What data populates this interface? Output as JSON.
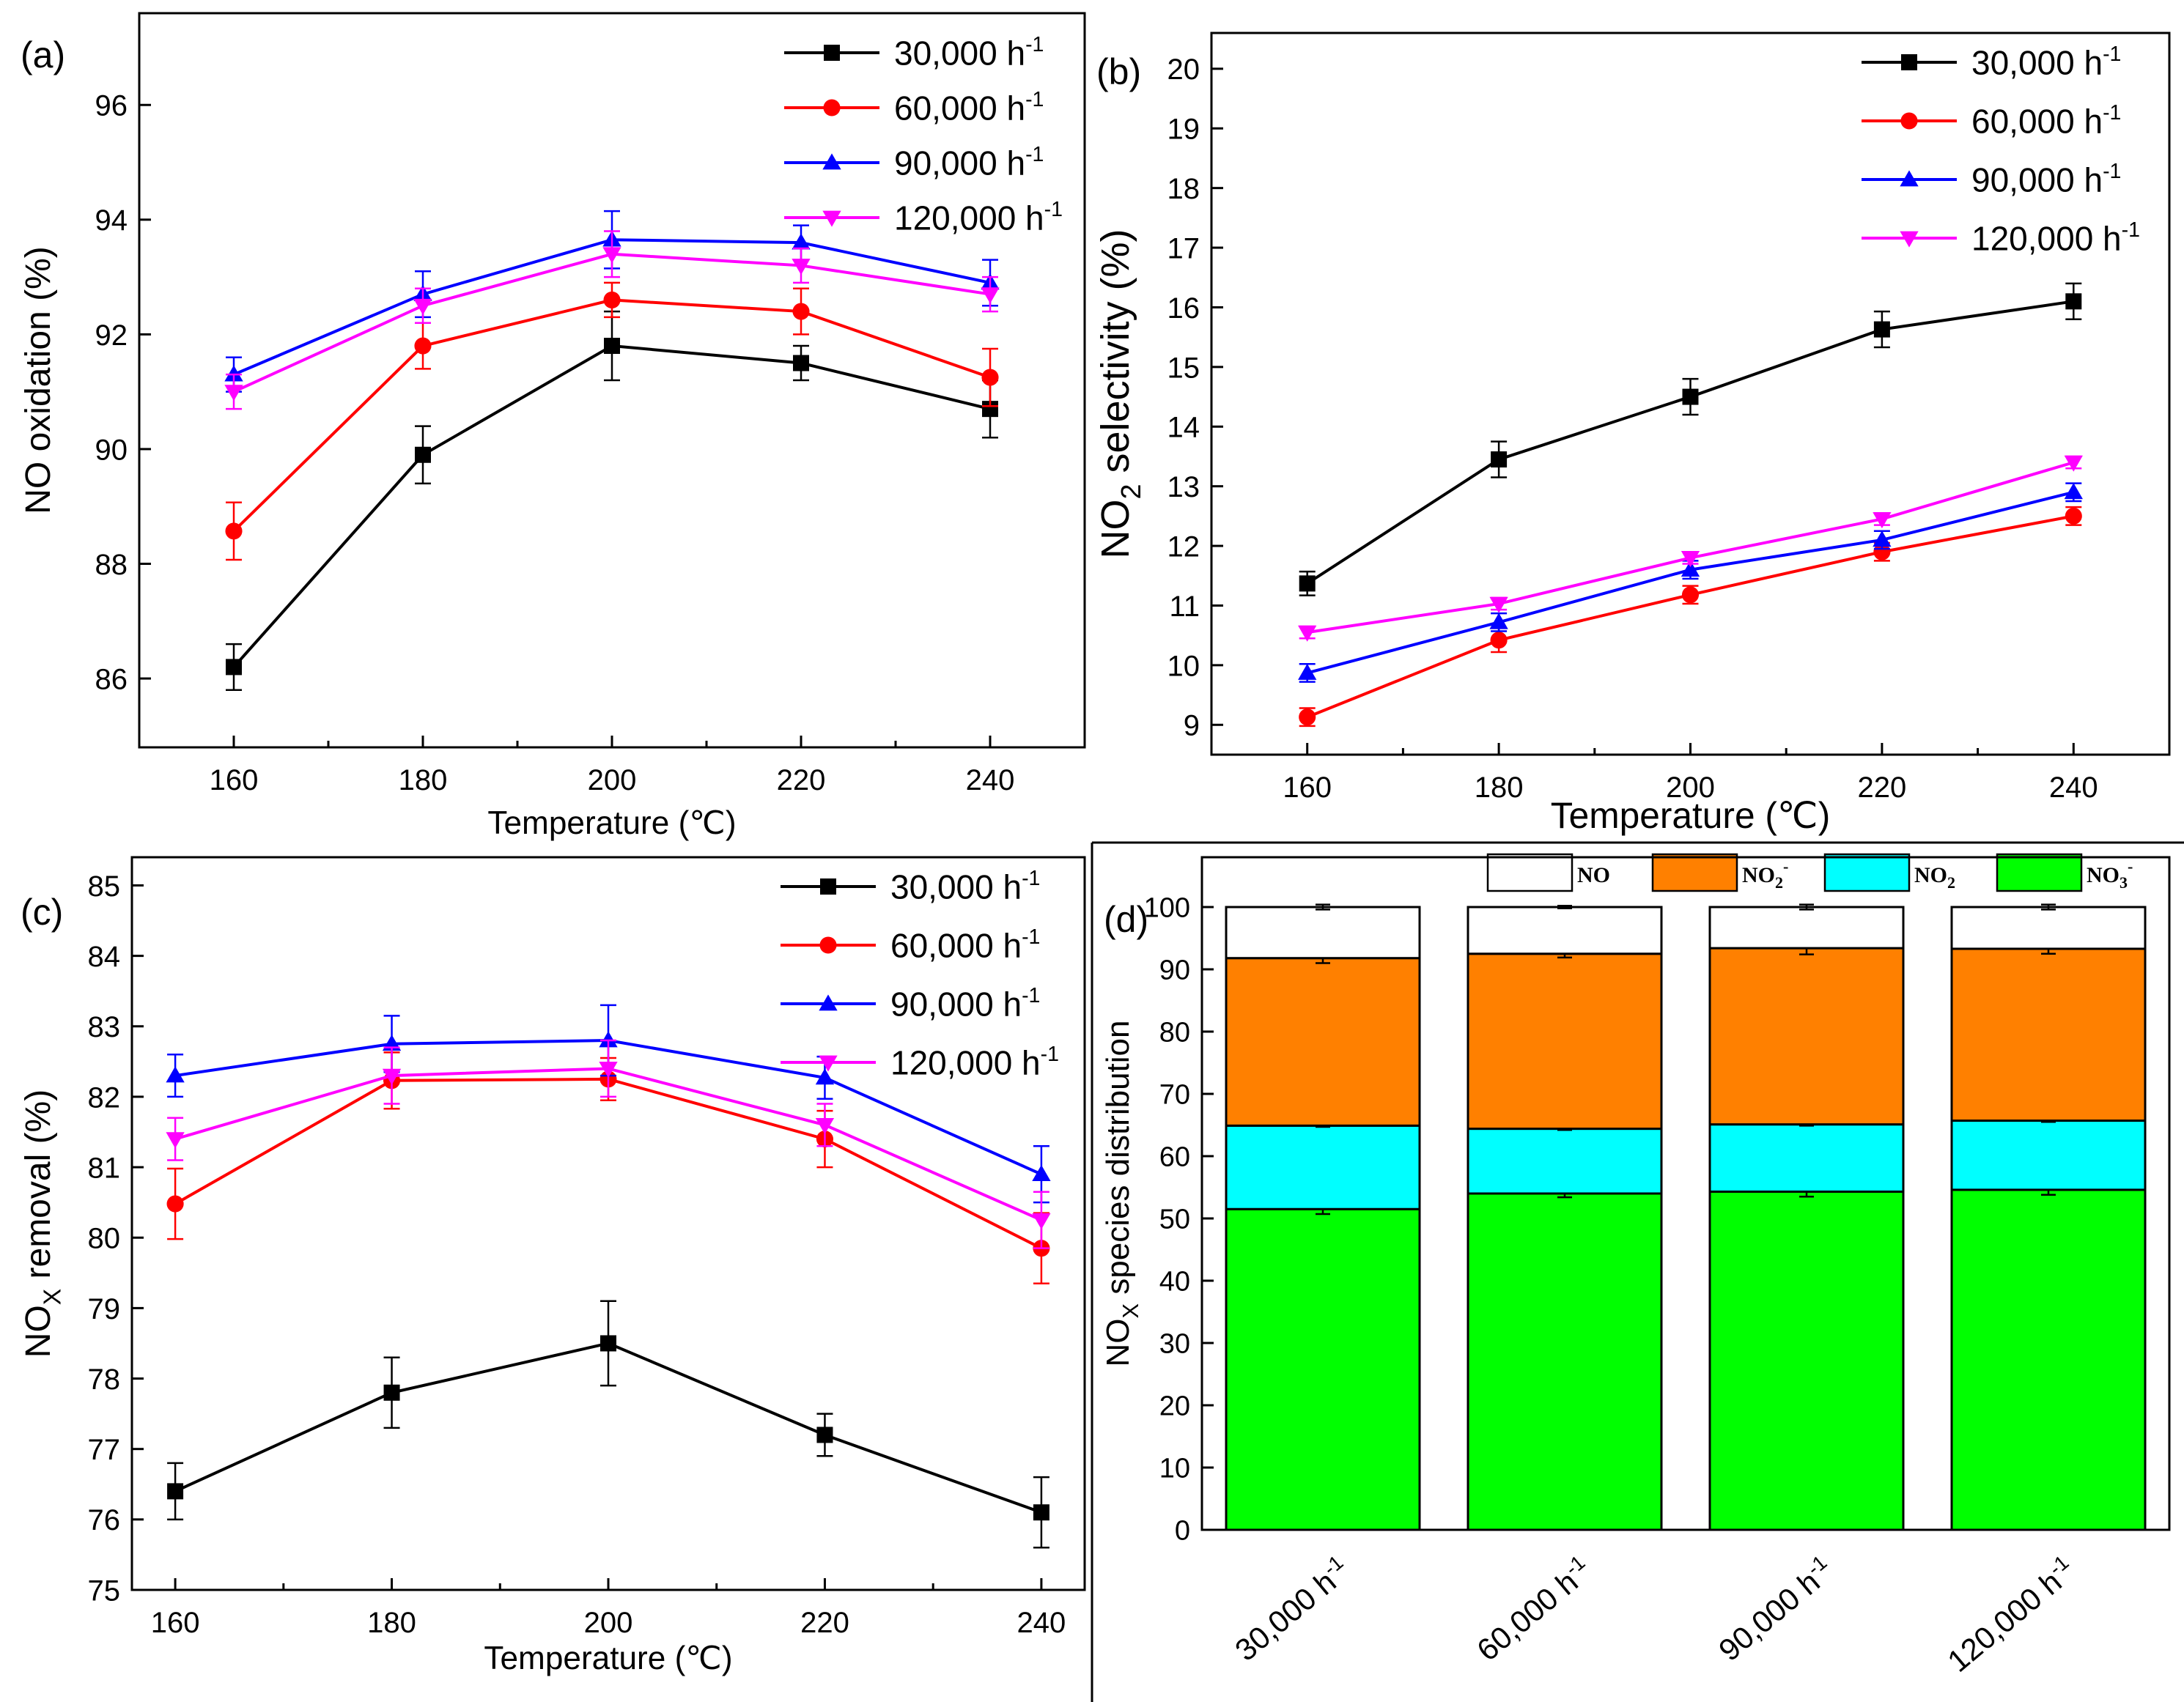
{
  "colors": {
    "s30": "#000000",
    "s60": "#ff0000",
    "s90": "#0000ff",
    "s120": "#ff00ff",
    "NO": "#ffffff",
    "NO2minus": "#ff8000",
    "NO2": "#00ffff",
    "NO3minus": "#00ff00"
  },
  "chart_data": [
    {
      "panel": "(a)",
      "type": "line",
      "xlabel": "Temperature (℃)",
      "ylabel": "NO oxidation (%)",
      "x": [
        160,
        180,
        200,
        220,
        240
      ],
      "xlim": [
        150,
        250
      ],
      "xticks": [
        160,
        180,
        200,
        220,
        240
      ],
      "ylim": [
        84.8,
        97.6
      ],
      "yticks": [
        86,
        88,
        90,
        92,
        94,
        96
      ],
      "legend": "top-right",
      "series": [
        {
          "name": "30,000 h",
          "sup": "-1",
          "marker": "square",
          "color": "#000000",
          "values": [
            86.2,
            89.9,
            91.8,
            91.5,
            90.7
          ],
          "errors": [
            0.4,
            0.5,
            0.6,
            0.3,
            0.5
          ]
        },
        {
          "name": "60,000 h",
          "sup": "-1",
          "marker": "circle",
          "color": "#ff0000",
          "values": [
            88.57,
            91.8,
            92.6,
            92.4,
            91.25
          ],
          "errors": [
            0.5,
            0.4,
            0.3,
            0.4,
            0.5
          ]
        },
        {
          "name": "90,000 h",
          "sup": "-1",
          "marker": "triangle-up",
          "color": "#0000ff",
          "values": [
            91.3,
            92.7,
            93.65,
            93.6,
            92.9
          ],
          "errors": [
            0.3,
            0.4,
            0.5,
            0.3,
            0.4
          ]
        },
        {
          "name": "120,000 h",
          "sup": "-1",
          "marker": "triangle-down",
          "color": "#ff00ff",
          "values": [
            91.0,
            92.5,
            93.4,
            93.2,
            92.7
          ],
          "errors": [
            0.3,
            0.3,
            0.4,
            0.3,
            0.3
          ]
        }
      ]
    },
    {
      "panel": "(b)",
      "type": "line",
      "xlabel": "Temperature (℃)",
      "ylabel": "NO2 selectivity (%)",
      "ylabel_parts": [
        "NO",
        "2",
        " selectivity (%)"
      ],
      "x": [
        160,
        180,
        200,
        220,
        240
      ],
      "xlim": [
        150,
        250
      ],
      "xticks": [
        160,
        180,
        200,
        220,
        240
      ],
      "ylim": [
        8.5,
        20.6
      ],
      "yticks": [
        9,
        10,
        11,
        12,
        13,
        14,
        15,
        16,
        17,
        18,
        19,
        20
      ],
      "legend": "top-right",
      "series": [
        {
          "name": "30,000 h",
          "sup": "-1",
          "marker": "square",
          "color": "#000000",
          "values": [
            11.37,
            13.45,
            14.5,
            15.63,
            16.1
          ],
          "errors": [
            0.2,
            0.3,
            0.3,
            0.3,
            0.3
          ]
        },
        {
          "name": "60,000 h",
          "sup": "-1",
          "marker": "circle",
          "color": "#ff0000",
          "values": [
            9.13,
            10.42,
            11.18,
            11.9,
            12.5
          ],
          "errors": [
            0.15,
            0.2,
            0.15,
            0.15,
            0.15
          ]
        },
        {
          "name": "90,000 h",
          "sup": "-1",
          "marker": "triangle-up",
          "color": "#0000ff",
          "values": [
            9.87,
            10.72,
            11.6,
            12.1,
            12.9
          ],
          "errors": [
            0.15,
            0.15,
            0.15,
            0.15,
            0.15
          ]
        },
        {
          "name": "120,000 h",
          "sup": "-1",
          "marker": "triangle-down",
          "color": "#ff00ff",
          "values": [
            10.55,
            11.03,
            11.8,
            12.45,
            13.4
          ],
          "errors": [
            0.1,
            0.1,
            0.1,
            0.1,
            0.1
          ]
        }
      ]
    },
    {
      "panel": "(c)",
      "type": "line",
      "xlabel": "Temperature (℃)",
      "ylabel": "NOX removal (%)",
      "ylabel_parts": [
        "NO",
        "X",
        " removal (%)"
      ],
      "x": [
        160,
        180,
        200,
        220,
        240
      ],
      "xlim": [
        156,
        244
      ],
      "xticks": [
        160,
        180,
        200,
        220,
        240
      ],
      "ylim": [
        75,
        85.4
      ],
      "yticks": [
        75,
        76,
        77,
        78,
        79,
        80,
        81,
        82,
        83,
        84,
        85
      ],
      "legend": "top-right",
      "series": [
        {
          "name": "30,000 h",
          "sup": "-1",
          "marker": "square",
          "color": "#000000",
          "values": [
            76.4,
            77.8,
            78.5,
            77.2,
            76.1
          ],
          "errors": [
            0.4,
            0.5,
            0.6,
            0.3,
            0.5
          ]
        },
        {
          "name": "60,000 h",
          "sup": "-1",
          "marker": "circle",
          "color": "#ff0000",
          "values": [
            80.48,
            82.23,
            82.25,
            81.4,
            79.85
          ],
          "errors": [
            0.5,
            0.4,
            0.3,
            0.4,
            0.5
          ]
        },
        {
          "name": "90,000 h",
          "sup": "-1",
          "marker": "triangle-up",
          "color": "#0000ff",
          "values": [
            82.3,
            82.75,
            82.8,
            82.27,
            80.9
          ],
          "errors": [
            0.3,
            0.4,
            0.5,
            0.3,
            0.4
          ]
        },
        {
          "name": "120,000 h",
          "sup": "-1",
          "marker": "triangle-down",
          "color": "#ff00ff",
          "values": [
            81.4,
            82.3,
            82.4,
            81.6,
            80.25
          ],
          "errors": [
            0.3,
            0.4,
            0.4,
            0.3,
            0.4
          ]
        }
      ]
    },
    {
      "panel": "(d)",
      "type": "bar",
      "stacked": true,
      "ylabel": "NOX species distribution",
      "ylabel_parts": [
        "NO",
        "X",
        " species distribution"
      ],
      "categories": [
        "30,000 h",
        "60,000 h",
        "90,000 h",
        "120,000 h"
      ],
      "category_sup": "-1",
      "ylim": [
        0,
        108
      ],
      "yticks": [
        0,
        10,
        20,
        30,
        40,
        50,
        60,
        70,
        80,
        90,
        100
      ],
      "legend": "top",
      "series": [
        {
          "name": "NO3-",
          "label": "NO",
          "sub": "3",
          "sup": "-",
          "color": "#00ff00",
          "values": [
            51.5,
            54.0,
            54.3,
            54.6
          ],
          "errors": [
            0.8,
            0.6,
            0.8,
            0.8
          ]
        },
        {
          "name": "NO2",
          "label": "NO",
          "sub": "2",
          "sup": "",
          "color": "#00ffff",
          "values": [
            13.4,
            10.4,
            10.8,
            11.1
          ],
          "errors": [
            0.2,
            0.2,
            0.2,
            0.2
          ]
        },
        {
          "name": "NO2-",
          "label": "NO",
          "sub": "2",
          "sup": "-",
          "color": "#ff8000",
          "values": [
            26.9,
            28.1,
            28.3,
            27.6
          ],
          "errors": [
            0.8,
            0.6,
            1.0,
            0.8
          ]
        },
        {
          "name": "NO",
          "label": "NO",
          "sub": "",
          "sup": "",
          "color": "#ffffff",
          "values": [
            8.2,
            7.5,
            6.6,
            6.7
          ],
          "errors": [
            0.4,
            0.2,
            0.4,
            0.4
          ]
        }
      ]
    }
  ]
}
